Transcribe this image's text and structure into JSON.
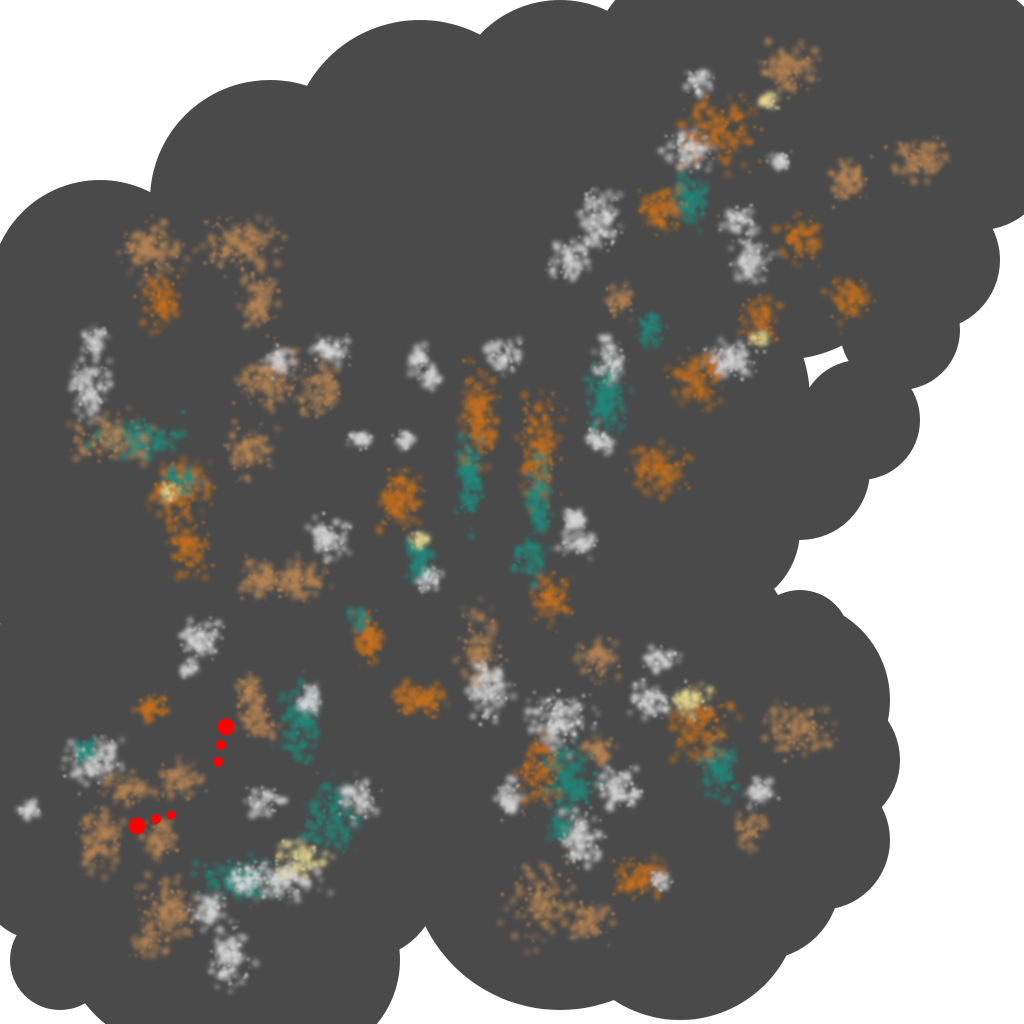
{
  "image": {
    "description_free_render": true,
    "colors": {
      "background": "#ffffff",
      "blob": "#4a4a4a",
      "orange": "#c8701c",
      "tan": "#b98552",
      "teal": "#1f8a7c",
      "white": "#d8d8d8",
      "yellow": "#e8d890",
      "marker": "#ff0000"
    },
    "markers": [
      {
        "name": "marker-large-top"
      },
      {
        "name": "marker-mid-1"
      },
      {
        "name": "marker-mid-2"
      },
      {
        "name": "marker-large-left"
      },
      {
        "name": "marker-small-1"
      },
      {
        "name": "marker-small-2"
      }
    ]
  }
}
